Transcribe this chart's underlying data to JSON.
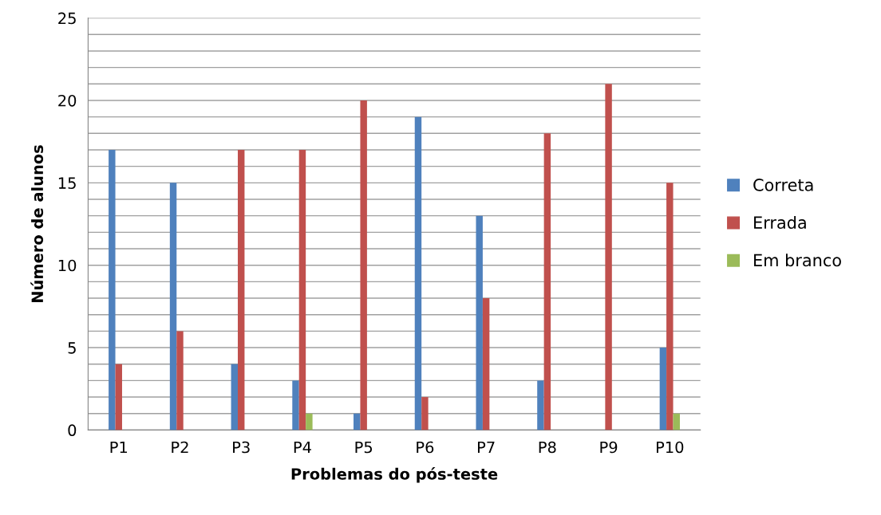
{
  "chart_data": {
    "type": "bar",
    "xlabel": "Problemas do pós-teste",
    "ylabel": "Número de alunos",
    "categories": [
      "P1",
      "P2",
      "P3",
      "P4",
      "P5",
      "P6",
      "P7",
      "P8",
      "P9",
      "P10"
    ],
    "series": [
      {
        "name": "Correta",
        "color": "#4f81bd",
        "values": [
          17,
          15,
          4,
          3,
          1,
          19,
          13,
          3,
          0,
          5
        ]
      },
      {
        "name": "Errada",
        "color": "#c0504d",
        "values": [
          4,
          6,
          17,
          17,
          20,
          2,
          8,
          18,
          21,
          15
        ]
      },
      {
        "name": "Em branco",
        "color": "#9bbb59",
        "values": [
          0,
          0,
          0,
          1,
          0,
          0,
          0,
          0,
          0,
          1
        ]
      }
    ],
    "ylim": [
      0,
      25
    ],
    "yticks": [
      0,
      {
        "value": 1,
        "label": null
      },
      {
        "value": 2,
        "label": null
      },
      {
        "value": 3,
        "label": null
      },
      {
        "value": 4,
        "label": null
      },
      5,
      {
        "value": 6,
        "label": null
      },
      {
        "value": 7,
        "label": null
      },
      {
        "value": 8,
        "label": null
      },
      {
        "value": 9,
        "label": null
      },
      10,
      {
        "value": 11,
        "label": null
      },
      {
        "value": 12,
        "label": null
      },
      {
        "value": 13,
        "label": null
      },
      {
        "value": 14,
        "label": null
      },
      15,
      {
        "value": 16,
        "label": null
      },
      {
        "value": 17,
        "label": null
      },
      {
        "value": 18,
        "label": null
      },
      {
        "value": 19,
        "label": null
      },
      20,
      {
        "value": 21,
        "label": null
      },
      {
        "value": 22,
        "label": null
      },
      {
        "value": 23,
        "label": null
      },
      {
        "value": 24,
        "label": null
      },
      25
    ],
    "grid": "y",
    "legend": "right"
  }
}
